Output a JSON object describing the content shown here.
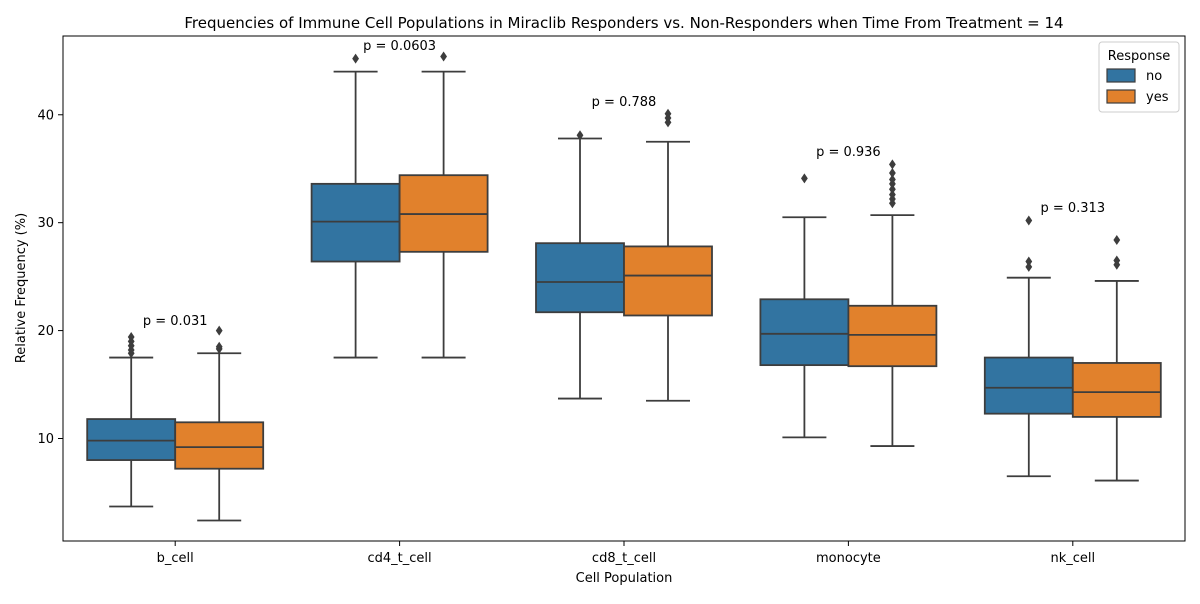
{
  "chart_data": {
    "type": "box",
    "title": "Frequencies of Immune Cell Populations in Miraclib Responders vs. Non-Responders when Time From Treatment = 14",
    "xlabel": "Cell Population",
    "ylabel": "Relative Frequency (%)",
    "categories": [
      "b_cell",
      "cd4_t_cell",
      "cd8_t_cell",
      "monocyte",
      "nk_cell"
    ],
    "ylim": [
      0.5,
      47.3
    ],
    "yticks": [
      10,
      20,
      30,
      40
    ],
    "grid": false,
    "legend": {
      "title": "Response",
      "position": "top-right"
    },
    "series": [
      {
        "name": "no",
        "color": "#3274a1",
        "boxes": [
          {
            "whisker_low": 3.7,
            "q1": 8.0,
            "median": 9.8,
            "q3": 11.8,
            "whisker_high": 17.5,
            "outliers": [
              17.9,
              18.2,
              18.6,
              19.0,
              19.4
            ]
          },
          {
            "whisker_low": 17.5,
            "q1": 26.4,
            "median": 30.1,
            "q3": 33.6,
            "whisker_high": 44.0,
            "outliers": [
              45.2
            ]
          },
          {
            "whisker_low": 13.7,
            "q1": 21.7,
            "median": 24.5,
            "q3": 28.1,
            "whisker_high": 37.8,
            "outliers": [
              38.1
            ]
          },
          {
            "whisker_low": 10.1,
            "q1": 16.8,
            "median": 19.7,
            "q3": 22.9,
            "whisker_high": 30.5,
            "outliers": [
              34.1
            ]
          },
          {
            "whisker_low": 6.5,
            "q1": 12.3,
            "median": 14.7,
            "q3": 17.5,
            "whisker_high": 24.9,
            "outliers": [
              25.9,
              26.4,
              30.2
            ]
          }
        ]
      },
      {
        "name": "yes",
        "color": "#e1812c",
        "boxes": [
          {
            "whisker_low": 2.4,
            "q1": 7.2,
            "median": 9.2,
            "q3": 11.5,
            "whisker_high": 17.9,
            "outliers": [
              18.3,
              18.5,
              20.0
            ]
          },
          {
            "whisker_low": 17.5,
            "q1": 27.3,
            "median": 30.8,
            "q3": 34.4,
            "whisker_high": 44.0,
            "outliers": [
              45.4
            ]
          },
          {
            "whisker_low": 13.5,
            "q1": 21.4,
            "median": 25.1,
            "q3": 27.8,
            "whisker_high": 37.5,
            "outliers": [
              39.3,
              39.7,
              40.1
            ]
          },
          {
            "whisker_low": 9.3,
            "q1": 16.7,
            "median": 19.6,
            "q3": 22.3,
            "whisker_high": 30.7,
            "outliers": [
              31.8,
              32.2,
              32.6,
              33.1,
              33.6,
              34.0,
              34.6,
              35.4
            ]
          },
          {
            "whisker_low": 6.1,
            "q1": 12.0,
            "median": 14.3,
            "q3": 17.0,
            "whisker_high": 24.6,
            "outliers": [
              26.1,
              26.5,
              28.4
            ]
          }
        ]
      }
    ],
    "annotations": [
      {
        "category": "b_cell",
        "text": "p = 0.031",
        "y": 20.5
      },
      {
        "category": "cd4_t_cell",
        "text": "p = 0.0603",
        "y": 46.0
      },
      {
        "category": "cd8_t_cell",
        "text": "p = 0.788",
        "y": 40.8
      },
      {
        "category": "monocyte",
        "text": "p = 0.936",
        "y": 36.2
      },
      {
        "category": "nk_cell",
        "text": "p = 0.313",
        "y": 31.0
      }
    ]
  }
}
